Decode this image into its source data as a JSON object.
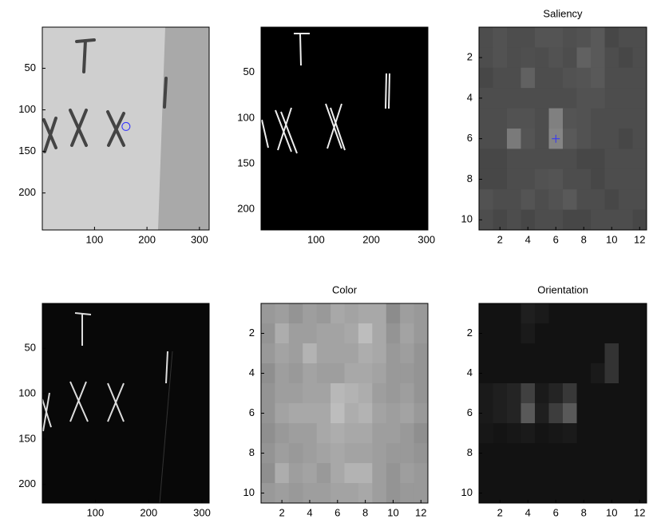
{
  "chart_data": [
    {
      "type": "image",
      "xlim": [
        0.5,
        318.5
      ],
      "ylim": [
        0.5,
        244.5
      ],
      "xticks": [
        100,
        200,
        300
      ],
      "yticks": [
        50,
        100,
        150,
        200
      ],
      "series": [
        {
          "marker": "circle",
          "color": "#3030ff",
          "x": [
            160
          ],
          "y": [
            120
          ]
        }
      ]
    },
    {
      "type": "image",
      "xlim": [
        0.5,
        302.5
      ],
      "ylim": [
        0.5,
        222.5
      ],
      "xticks": [
        100,
        200,
        300
      ],
      "yticks": [
        50,
        100,
        150,
        200
      ]
    },
    {
      "type": "heatmap",
      "title": "Saliency",
      "xlim": [
        0.5,
        12.5
      ],
      "ylim": [
        0.5,
        10.5
      ],
      "xticks": [
        2,
        4,
        6,
        8,
        10,
        12
      ],
      "yticks": [
        2,
        4,
        6,
        8,
        10
      ],
      "series": [
        {
          "marker": "plus",
          "color": "#3030ff",
          "x": [
            6
          ],
          "y": [
            6
          ]
        }
      ],
      "values": [
        [
          0.3,
          0.32,
          0.3,
          0.3,
          0.33,
          0.33,
          0.31,
          0.32,
          0.35,
          0.28,
          0.3,
          0.3
        ],
        [
          0.3,
          0.32,
          0.3,
          0.31,
          0.3,
          0.32,
          0.3,
          0.38,
          0.35,
          0.3,
          0.28,
          0.3
        ],
        [
          0.28,
          0.3,
          0.3,
          0.38,
          0.3,
          0.3,
          0.32,
          0.33,
          0.35,
          0.3,
          0.3,
          0.3
        ],
        [
          0.3,
          0.3,
          0.3,
          0.3,
          0.3,
          0.3,
          0.3,
          0.32,
          0.32,
          0.3,
          0.3,
          0.3
        ],
        [
          0.3,
          0.3,
          0.32,
          0.32,
          0.3,
          0.5,
          0.33,
          0.32,
          0.3,
          0.3,
          0.3,
          0.3
        ],
        [
          0.3,
          0.3,
          0.48,
          0.33,
          0.3,
          0.52,
          0.35,
          0.32,
          0.3,
          0.3,
          0.28,
          0.3
        ],
        [
          0.28,
          0.28,
          0.3,
          0.3,
          0.3,
          0.3,
          0.3,
          0.28,
          0.28,
          0.3,
          0.3,
          0.3
        ],
        [
          0.28,
          0.28,
          0.3,
          0.3,
          0.32,
          0.33,
          0.3,
          0.3,
          0.28,
          0.3,
          0.3,
          0.3
        ],
        [
          0.32,
          0.3,
          0.3,
          0.33,
          0.3,
          0.32,
          0.35,
          0.3,
          0.3,
          0.28,
          0.3,
          0.3
        ],
        [
          0.3,
          0.28,
          0.3,
          0.28,
          0.3,
          0.3,
          0.28,
          0.28,
          0.3,
          0.3,
          0.3,
          0.28
        ]
      ]
    },
    {
      "type": "image",
      "xlim": [
        0.5,
        313.5
      ],
      "ylim": [
        0.5,
        220.5
      ],
      "xticks": [
        100,
        200,
        300
      ],
      "yticks": [
        50,
        100,
        150,
        200
      ]
    },
    {
      "type": "heatmap",
      "title": "Color",
      "xlim": [
        0.5,
        12.5
      ],
      "ylim": [
        0.5,
        10.5
      ],
      "xticks": [
        2,
        4,
        6,
        8,
        10,
        12
      ],
      "yticks": [
        2,
        4,
        6,
        8,
        10
      ],
      "values": [
        [
          0.6,
          0.62,
          0.58,
          0.62,
          0.6,
          0.66,
          0.64,
          0.66,
          0.66,
          0.55,
          0.62,
          0.6
        ],
        [
          0.58,
          0.68,
          0.62,
          0.62,
          0.64,
          0.64,
          0.66,
          0.74,
          0.66,
          0.58,
          0.64,
          0.6
        ],
        [
          0.6,
          0.64,
          0.62,
          0.7,
          0.64,
          0.64,
          0.64,
          0.68,
          0.66,
          0.6,
          0.62,
          0.58
        ],
        [
          0.56,
          0.62,
          0.6,
          0.64,
          0.62,
          0.62,
          0.66,
          0.66,
          0.64,
          0.6,
          0.6,
          0.58
        ],
        [
          0.58,
          0.62,
          0.62,
          0.64,
          0.64,
          0.72,
          0.7,
          0.68,
          0.62,
          0.6,
          0.62,
          0.58
        ],
        [
          0.58,
          0.64,
          0.66,
          0.66,
          0.66,
          0.74,
          0.68,
          0.7,
          0.64,
          0.62,
          0.64,
          0.6
        ],
        [
          0.56,
          0.6,
          0.62,
          0.62,
          0.66,
          0.68,
          0.66,
          0.66,
          0.62,
          0.62,
          0.6,
          0.56
        ],
        [
          0.58,
          0.62,
          0.6,
          0.62,
          0.64,
          0.66,
          0.64,
          0.64,
          0.62,
          0.6,
          0.6,
          0.58
        ],
        [
          0.56,
          0.68,
          0.62,
          0.64,
          0.6,
          0.66,
          0.7,
          0.7,
          0.62,
          0.58,
          0.62,
          0.6
        ],
        [
          0.6,
          0.62,
          0.6,
          0.62,
          0.62,
          0.64,
          0.64,
          0.66,
          0.62,
          0.58,
          0.6,
          0.6
        ]
      ]
    },
    {
      "type": "heatmap",
      "title": "Orientation",
      "xlim": [
        0.5,
        12.5
      ],
      "ylim": [
        0.5,
        10.5
      ],
      "xticks": [
        2,
        4,
        6,
        8,
        10,
        12
      ],
      "yticks": [
        2,
        4,
        6,
        8,
        10
      ],
      "values": [
        [
          0.07,
          0.07,
          0.07,
          0.12,
          0.1,
          0.07,
          0.07,
          0.07,
          0.07,
          0.07,
          0.07,
          0.07
        ],
        [
          0.07,
          0.07,
          0.07,
          0.1,
          0.07,
          0.07,
          0.07,
          0.07,
          0.07,
          0.07,
          0.07,
          0.07
        ],
        [
          0.07,
          0.07,
          0.07,
          0.07,
          0.07,
          0.07,
          0.07,
          0.07,
          0.07,
          0.2,
          0.07,
          0.07
        ],
        [
          0.07,
          0.07,
          0.07,
          0.07,
          0.07,
          0.07,
          0.07,
          0.07,
          0.1,
          0.2,
          0.07,
          0.07
        ],
        [
          0.1,
          0.12,
          0.14,
          0.25,
          0.1,
          0.14,
          0.22,
          0.07,
          0.07,
          0.07,
          0.07,
          0.07
        ],
        [
          0.1,
          0.12,
          0.14,
          0.35,
          0.12,
          0.24,
          0.35,
          0.07,
          0.07,
          0.07,
          0.07,
          0.07
        ],
        [
          0.09,
          0.08,
          0.09,
          0.1,
          0.08,
          0.09,
          0.1,
          0.07,
          0.07,
          0.07,
          0.07,
          0.07
        ],
        [
          0.07,
          0.07,
          0.07,
          0.07,
          0.07,
          0.07,
          0.07,
          0.07,
          0.07,
          0.07,
          0.07,
          0.07
        ],
        [
          0.07,
          0.07,
          0.07,
          0.07,
          0.07,
          0.07,
          0.07,
          0.07,
          0.07,
          0.07,
          0.07,
          0.07
        ],
        [
          0.07,
          0.07,
          0.07,
          0.07,
          0.07,
          0.07,
          0.07,
          0.07,
          0.07,
          0.07,
          0.07,
          0.07
        ]
      ]
    }
  ]
}
